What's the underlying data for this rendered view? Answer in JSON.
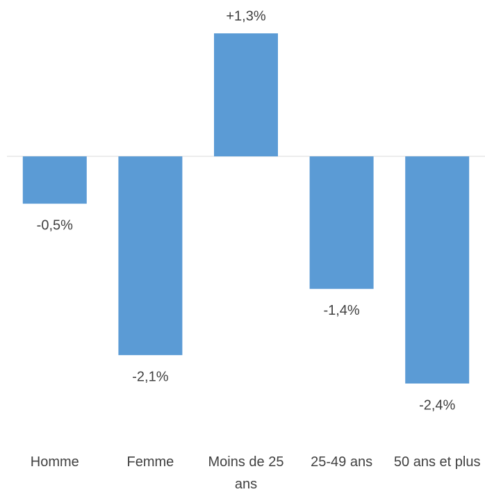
{
  "chart_data": {
    "type": "bar",
    "categories": [
      "Homme",
      "Femme",
      "Moins de 25 ans",
      "25-49 ans",
      "50 ans et plus"
    ],
    "values": [
      -0.5,
      -2.1,
      1.3,
      -1.4,
      -2.4
    ],
    "value_labels": [
      "-0,5%",
      "-2,1%",
      "+1,3%",
      "-1,4%",
      "-2,4%"
    ],
    "color": "#5b9bd5"
  }
}
